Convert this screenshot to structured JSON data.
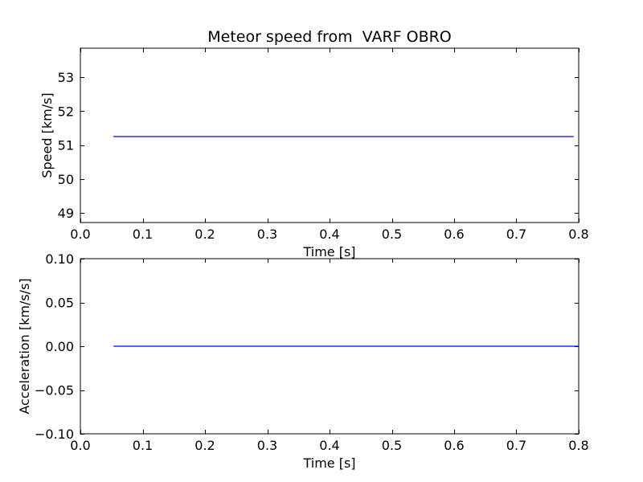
{
  "chart_data": [
    {
      "type": "line",
      "title": "Meteor speed from  VARF OBRO",
      "xlabel": "Time [s]",
      "ylabel": "Speed [km/s]",
      "xlim": [
        0.0,
        0.8
      ],
      "ylim": [
        48.72,
        53.85
      ],
      "xticks": [
        0.0,
        0.1,
        0.2,
        0.3,
        0.4,
        0.5,
        0.6,
        0.7,
        0.8
      ],
      "xtick_labels": [
        "0.0",
        "0.1",
        "0.2",
        "0.3",
        "0.4",
        "0.5",
        "0.6",
        "0.7",
        "0.8"
      ],
      "yticks": [
        49,
        50,
        51,
        52,
        53
      ],
      "ytick_labels": [
        "49",
        "50",
        "51",
        "52",
        "53"
      ],
      "grid": false,
      "series": [
        {
          "color": "#0000ff",
          "x": [
            0.053,
            0.792
          ],
          "y": [
            51.25,
            51.25
          ]
        }
      ]
    },
    {
      "type": "line",
      "title": "",
      "xlabel": "Time [s]",
      "ylabel": "Acceleration [km/s/s]",
      "xlim": [
        0.0,
        0.8
      ],
      "ylim": [
        -0.1,
        0.1
      ],
      "xticks": [
        0.0,
        0.1,
        0.2,
        0.3,
        0.4,
        0.5,
        0.6,
        0.7,
        0.8
      ],
      "xtick_labels": [
        "0.0",
        "0.1",
        "0.2",
        "0.3",
        "0.4",
        "0.5",
        "0.6",
        "0.7",
        "0.8"
      ],
      "yticks": [
        -0.1,
        -0.05,
        0.0,
        0.05,
        0.1
      ],
      "ytick_labels": [
        "−0.10",
        "−0.05",
        "0.00",
        "0.05",
        "0.10"
      ],
      "grid": false,
      "series": [
        {
          "color": "#0000ff",
          "x": [
            0.053,
            0.8
          ],
          "y": [
            0.0,
            0.0
          ]
        }
      ]
    }
  ]
}
